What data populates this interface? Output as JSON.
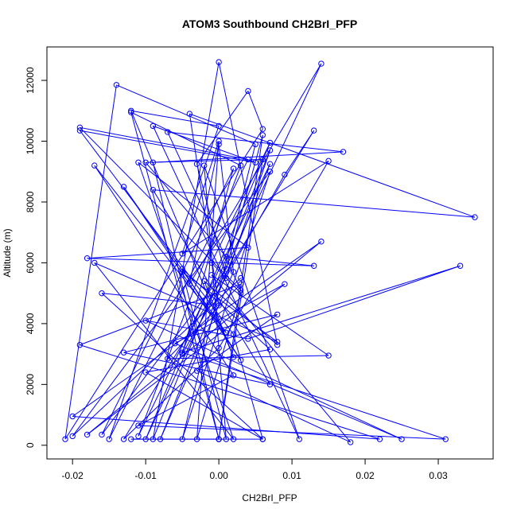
{
  "chart_data": {
    "type": "line",
    "markers": "open-circle",
    "title": "ATOM3 Southbound CH2BrI_PFP",
    "xlabel": "CH2BrI_PFP",
    "ylabel": "Altitude (m)",
    "xlim": [
      -0.0235,
      0.0375
    ],
    "ylim": [
      -450,
      13100
    ],
    "x_ticks": [
      -0.02,
      -0.01,
      0.0,
      0.01,
      0.02,
      0.03
    ],
    "x_tick_labels": [
      "-0.02",
      "-0.01",
      "0.00",
      "0.01",
      "0.02",
      "0.03"
    ],
    "y_ticks": [
      0,
      2000,
      4000,
      6000,
      8000,
      10000,
      12000
    ],
    "y_tick_labels": [
      "0",
      "2000",
      "4000",
      "6000",
      "8000",
      "10000",
      "12000"
    ],
    "colors": {
      "series": "#0000ff",
      "axis": "#000000",
      "background": "#ffffff"
    },
    "series": [
      {
        "x": [
          0.003,
          -0.02,
          0.007,
          -0.005,
          0.005,
          -0.014,
          -0.021,
          0.006,
          0.004,
          -0.003,
          0.001,
          0.007,
          -0.009,
          0.0,
          0.008,
          -0.002,
          0.002,
          -0.012,
          0.0,
          -0.015,
          0.004,
          -0.019,
          0.003,
          -0.007,
          0.017,
          -0.009,
          0.0,
          0.006,
          0.001,
          -0.016,
          0.002,
          -0.005,
          0.009,
          0.013,
          -0.013,
          0.0,
          0.015,
          -0.005,
          0.0,
          -0.003,
          0.003,
          -0.001,
          0.007,
          -0.01,
          0.014,
          -0.004,
          0.0,
          0.002,
          -0.008,
          0.007,
          -0.011,
          0.003,
          -0.012,
          0.0,
          0.006,
          -0.01,
          0.001,
          0.013,
          -0.018,
          0.004,
          -0.011,
          0.002,
          -0.017,
          0.008,
          -0.005,
          0.001,
          -0.002,
          0.011,
          -0.009,
          0.005,
          -0.019,
          0.002,
          0.006,
          -0.016,
          0.0,
          -0.004,
          0.035,
          -0.009,
          0.007,
          -0.013,
          0.008,
          -0.003,
          0.018,
          -0.001,
          0.015,
          -0.007,
          0.003,
          -0.019,
          0.022,
          -0.02,
          0.014,
          -0.018,
          0.009,
          -0.006,
          0.025,
          -0.01,
          0.004,
          0.033,
          -0.005,
          0.031,
          -0.011,
          0.002,
          -0.017,
          0.001,
          -0.013,
          0.003,
          -0.005,
          0.007,
          -0.01,
          0.006,
          -0.012,
          0.0
        ],
        "y": [
          5500,
          300,
          9000,
          200,
          9900,
          11850,
          200,
          10400,
          11650,
          9250,
          5500,
          9700,
          200,
          12600,
          3300,
          5400,
          2900,
          11000,
          10500,
          200,
          9400,
          10450,
          5100,
          10300,
          9650,
          9300,
          200,
          10200,
          5800,
          350,
          9100,
          3000,
          8900,
          10350,
          200,
          3200,
          9350,
          6300,
          10000,
          200,
          5000,
          6000,
          9950,
          200,
          12550,
          5300,
          9900,
          5700,
          200,
          9250,
          300,
          9200,
          10950,
          200,
          9400,
          9300,
          6200,
          5900,
          6150,
          6500,
          9300,
          200,
          6000,
          3400,
          5700,
          200,
          9200,
          200,
          10500,
          9300,
          10350,
          3650,
          200,
          5000,
          4600,
          10900,
          7500,
          8400,
          2000,
          3050,
          4300,
          2450,
          100,
          5600,
          2950,
          2850,
          5300,
          3300,
          200,
          950,
          6700,
          350,
          5300,
          3350,
          200,
          4100,
          3500,
          5900,
          3050,
          200,
          650,
          2300,
          9200,
          3700,
          8500,
          2800,
          5800,
          3150,
          2400,
          200,
          200,
          200
        ]
      }
    ]
  }
}
